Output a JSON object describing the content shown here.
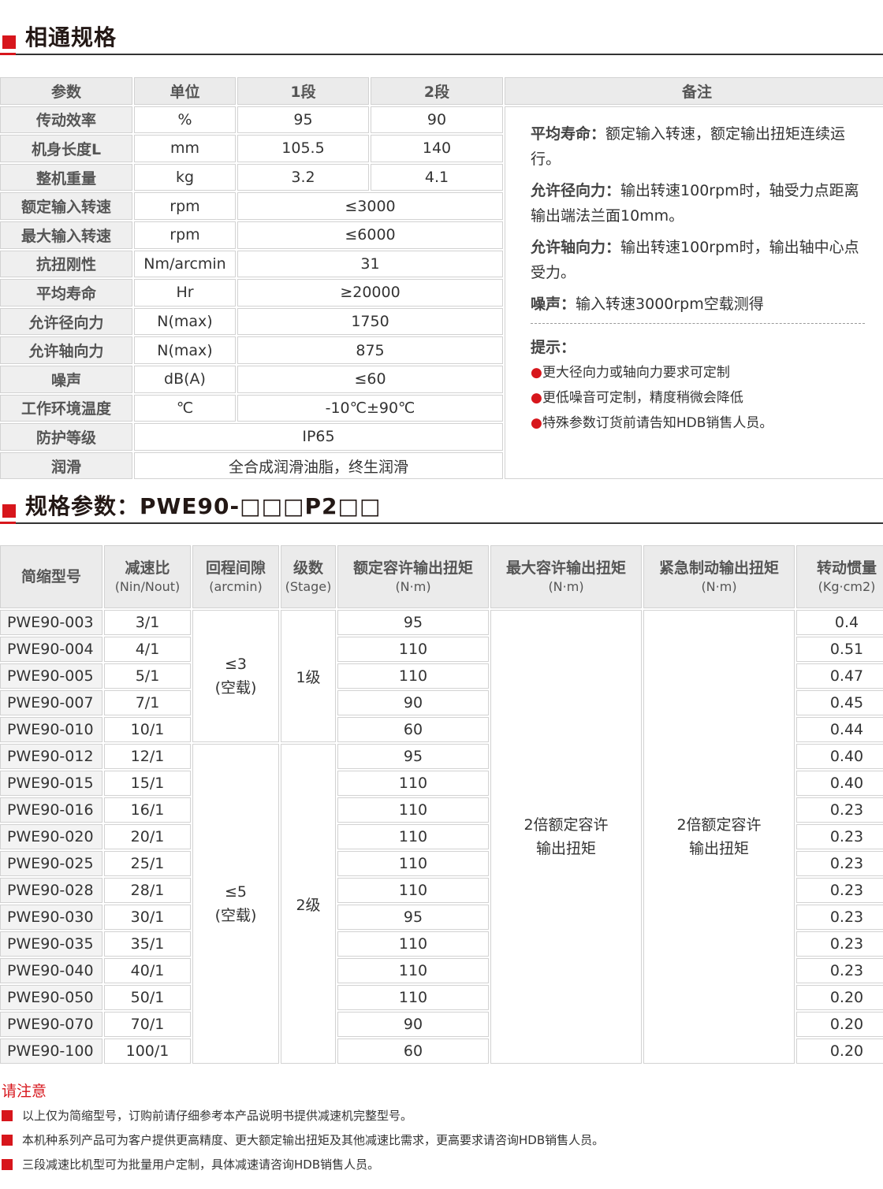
{
  "section1": {
    "title": "相通规格"
  },
  "common_table": {
    "headers": [
      "参数",
      "单位",
      "1段",
      "2段",
      "备注"
    ],
    "rows": [
      {
        "param": "传动效率",
        "unit": "%",
        "s1": "95",
        "s2": "90"
      },
      {
        "param": "机身长度L",
        "unit": "mm",
        "s1": "105.5",
        "s2": "140"
      },
      {
        "param": "整机重量",
        "unit": "kg",
        "s1": "3.2",
        "s2": "4.1"
      },
      {
        "param": "额定输入转速",
        "unit": "rpm",
        "both": "≤3000"
      },
      {
        "param": "最大输入转速",
        "unit": "rpm",
        "both": "≤6000"
      },
      {
        "param": "抗扭刚性",
        "unit": "Nm/arcmin",
        "both": "31"
      },
      {
        "param": "平均寿命",
        "unit": "Hr",
        "both": "≥20000"
      },
      {
        "param": "允许径向力",
        "unit": "N(max)",
        "both": "1750"
      },
      {
        "param": "允许轴向力",
        "unit": "N(max)",
        "both": "875"
      },
      {
        "param": "噪声",
        "unit": "dB(A)",
        "both": "≤60"
      },
      {
        "param": "工作环境温度",
        "unit": "℃",
        "both": "-10℃±90℃"
      },
      {
        "param": "防护等级",
        "all": "IP65"
      },
      {
        "param": "润滑",
        "all": "全合成润滑油脂，终生润滑"
      }
    ],
    "notes": [
      {
        "label": "平均寿命：",
        "text": "额定输入转速，额定输出扭矩连续运行。"
      },
      {
        "label": "允许径向力：",
        "text": "输出转速100rpm时，轴受力点距离输出端法兰面10mm。"
      },
      {
        "label": "允许轴向力：",
        "text": "输出转速100rpm时，输出轴中心点受力。"
      },
      {
        "label": "噪声：",
        "text": "输入转速3000rpm空载测得"
      }
    ],
    "tips_title": "提示：",
    "tips": [
      "更大径向力或轴向力要求可定制",
      "更低噪音可定制，精度稍微会降低",
      "特殊参数订货前请告知HDB销售人员。"
    ]
  },
  "section2": {
    "title": "规格参数：PWE90-□□□P2□□"
  },
  "spec_table": {
    "headers": [
      {
        "title": "简缩型号",
        "unit": ""
      },
      {
        "title": "减速比",
        "unit": "(Nin/Nout)"
      },
      {
        "title": "回程间隙",
        "unit": "(arcmin)"
      },
      {
        "title": "级数",
        "unit": "(Stage)"
      },
      {
        "title": "额定容许输出扭矩",
        "unit": "(N·m)"
      },
      {
        "title": "最大容许输出扭矩",
        "unit": "(N·m)"
      },
      {
        "title": "紧急制动输出扭矩",
        "unit": "(N·m)"
      },
      {
        "title": "转动惯量",
        "unit": "(Kg·cm2)"
      }
    ],
    "groups": [
      {
        "backlash": [
          "≤3",
          "(空载)"
        ],
        "stage": "1级",
        "rows": 5
      },
      {
        "backlash": [
          "≤5",
          "(空载)"
        ],
        "stage": "2级",
        "rows": 12
      }
    ],
    "max_torque": [
      "2倍额定容许",
      "输出扭矩"
    ],
    "emergency_torque": [
      "2倍额定容许",
      "输出扭矩"
    ],
    "rows": [
      [
        "PWE90-003",
        "3/1",
        "95",
        "0.4"
      ],
      [
        "PWE90-004",
        "4/1",
        "110",
        "0.51"
      ],
      [
        "PWE90-005",
        "5/1",
        "110",
        "0.47"
      ],
      [
        "PWE90-007",
        "7/1",
        "90",
        "0.45"
      ],
      [
        "PWE90-010",
        "10/1",
        "60",
        "0.44"
      ],
      [
        "PWE90-012",
        "12/1",
        "95",
        "0.40"
      ],
      [
        "PWE90-015",
        "15/1",
        "110",
        "0.40"
      ],
      [
        "PWE90-016",
        "16/1",
        "110",
        "0.23"
      ],
      [
        "PWE90-020",
        "20/1",
        "110",
        "0.23"
      ],
      [
        "PWE90-025",
        "25/1",
        "110",
        "0.23"
      ],
      [
        "PWE90-028",
        "28/1",
        "110",
        "0.23"
      ],
      [
        "PWE90-030",
        "30/1",
        "95",
        "0.23"
      ],
      [
        "PWE90-035",
        "35/1",
        "110",
        "0.23"
      ],
      [
        "PWE90-040",
        "40/1",
        "110",
        "0.23"
      ],
      [
        "PWE90-050",
        "50/1",
        "110",
        "0.20"
      ],
      [
        "PWE90-070",
        "70/1",
        "90",
        "0.20"
      ],
      [
        "PWE90-100",
        "100/1",
        "60",
        "0.20"
      ]
    ]
  },
  "notice": {
    "title": "请注意",
    "items": [
      "以上仅为简缩型号，订购前请仔细参考本产品说明书提供减速机完整型号。",
      "本机种系列产品可为客户提供更高精度、更大额定输出扭矩及其他减速比需求，更高要求请咨询HDB销售人员。",
      "三段减速比机型可为批量用户定制，具体减速请咨询HDB销售人员。"
    ]
  },
  "colors": {
    "accent": "#d7161c",
    "header_bg": "#ebebeb",
    "border": "#d2d2d2"
  }
}
